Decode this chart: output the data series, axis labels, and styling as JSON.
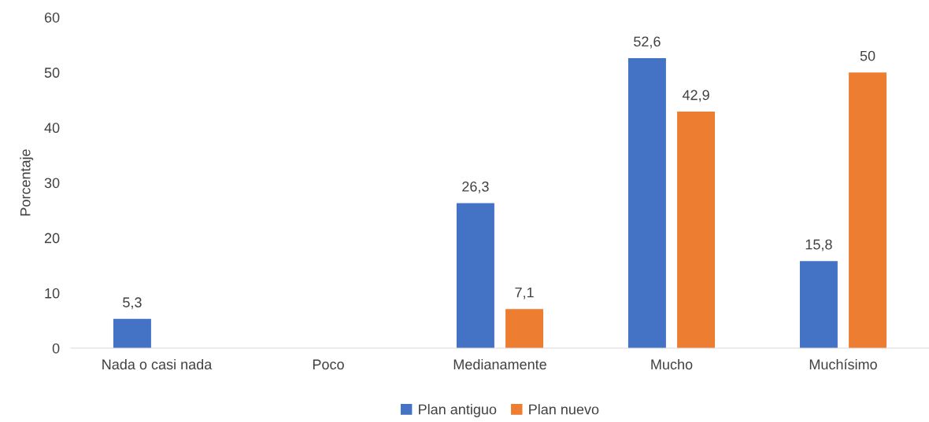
{
  "chart_data": {
    "type": "bar",
    "ylabel": "Porcentaje",
    "categories": [
      "Nada o casi nada",
      "Poco",
      "Medianamente",
      "Mucho",
      "Muchísimo"
    ],
    "series": [
      {
        "name": "Plan antiguo",
        "color": "#4472c4",
        "values": [
          5.3,
          null,
          26.3,
          52.6,
          15.8
        ],
        "value_labels": [
          "5,3",
          null,
          "26,3",
          "52,6",
          "15,8"
        ]
      },
      {
        "name": "Plan nuevo",
        "color": "#ed7d31",
        "values": [
          null,
          null,
          7.1,
          42.9,
          50
        ],
        "value_labels": [
          null,
          null,
          "7,1",
          "42,9",
          "50"
        ]
      }
    ],
    "ylim": [
      0,
      60
    ],
    "yticks": [
      0,
      10,
      20,
      30,
      40,
      50,
      60
    ],
    "grid": false,
    "legend": "bottom"
  }
}
